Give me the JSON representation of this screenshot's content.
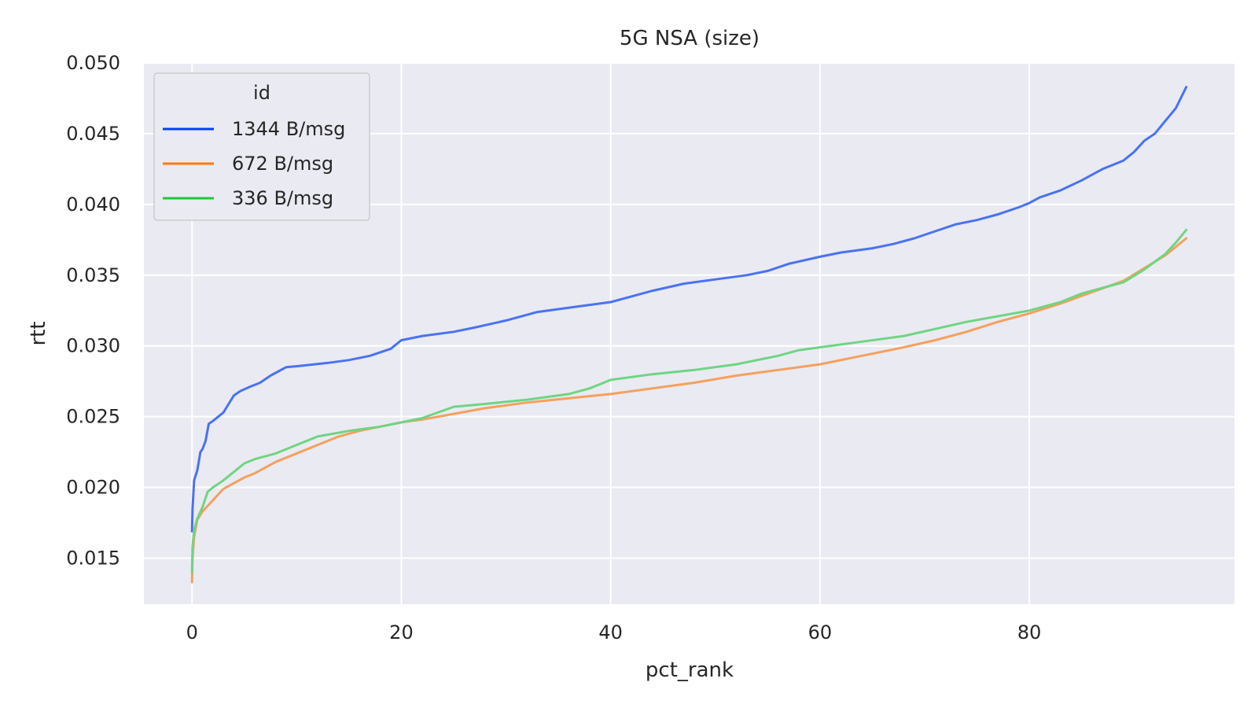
{
  "chart_data": {
    "type": "line",
    "title": "5G NSA (size)",
    "xlabel": "pct_rank",
    "ylabel": "rtt",
    "xlim": [
      -4.6,
      99.6
    ],
    "ylim": [
      0.01175,
      0.05
    ],
    "x_ticks": [
      0,
      20,
      40,
      60,
      80
    ],
    "y_ticks": [
      0.015,
      0.02,
      0.025,
      0.03,
      0.035,
      0.04,
      0.045,
      0.05
    ],
    "y_tick_labels": [
      "0.015",
      "0.020",
      "0.025",
      "0.030",
      "0.035",
      "0.040",
      "0.045",
      "0.050"
    ],
    "grid": true,
    "legend": {
      "title": "id",
      "position": "top-left"
    },
    "colors": {
      "background": "#eaeaf2",
      "grid": "#ffffff"
    },
    "series": [
      {
        "name": "1344 B/msg",
        "color": "#4a72f0",
        "legend_color": "#023eff",
        "x": [
          0,
          0.05,
          0.2,
          0.5,
          0.8,
          1.0,
          1.3,
          1.6,
          2.0,
          3.0,
          3.5,
          4.0,
          4.6,
          5.5,
          6.5,
          7.5,
          9.0,
          10.5,
          13.0,
          15.0,
          17.0,
          19.0,
          20.0,
          22.0,
          25.0,
          27.0,
          30.0,
          33.0,
          37.0,
          40.0,
          42.0,
          44.0,
          47.0,
          50.0,
          53.0,
          55.0,
          57.0,
          60.0,
          62.0,
          65.0,
          67.0,
          69.0,
          71.0,
          73.0,
          75.0,
          77.0,
          79.0,
          80.0,
          81.0,
          83.0,
          85.0,
          87.0,
          88.0,
          89.0,
          90.0,
          91.0,
          92.0,
          93.0,
          94.0,
          95.0
        ],
        "y": [
          0.0169,
          0.0185,
          0.0205,
          0.0212,
          0.0225,
          0.0227,
          0.0233,
          0.0245,
          0.0247,
          0.0253,
          0.0259,
          0.0265,
          0.0268,
          0.0271,
          0.0274,
          0.0279,
          0.0285,
          0.0286,
          0.0288,
          0.029,
          0.0293,
          0.0298,
          0.0304,
          0.0307,
          0.031,
          0.0313,
          0.0318,
          0.0324,
          0.0328,
          0.0331,
          0.0335,
          0.0339,
          0.0344,
          0.0347,
          0.035,
          0.0353,
          0.0358,
          0.0363,
          0.0366,
          0.0369,
          0.0372,
          0.0376,
          0.0381,
          0.0386,
          0.0389,
          0.0393,
          0.0398,
          0.0401,
          0.0405,
          0.041,
          0.0417,
          0.0425,
          0.0428,
          0.0431,
          0.0437,
          0.0445,
          0.045,
          0.0459,
          0.0468,
          0.0483
        ]
      },
      {
        "name": "672 B/msg",
        "color": "#f5a05c",
        "legend_color": "#ff7c00",
        "x": [
          0,
          0.05,
          0.2,
          0.5,
          1.0,
          1.5,
          2.0,
          3.0,
          4.0,
          5.0,
          6.0,
          8.0,
          10.0,
          12.0,
          14.0,
          16.0,
          18.0,
          20.0,
          22.0,
          25.0,
          28.0,
          32.0,
          36.0,
          40.0,
          44.0,
          48.0,
          52.0,
          56.0,
          60.0,
          64.0,
          68.0,
          71.0,
          74.0,
          77.0,
          80.0,
          83.0,
          86.0,
          89.0,
          91.0,
          93.0,
          95.0
        ],
        "y": [
          0.0133,
          0.015,
          0.0165,
          0.0177,
          0.0183,
          0.0187,
          0.0191,
          0.0199,
          0.0203,
          0.0207,
          0.021,
          0.0218,
          0.0224,
          0.023,
          0.0236,
          0.024,
          0.0243,
          0.0246,
          0.0248,
          0.0252,
          0.0256,
          0.026,
          0.0263,
          0.0266,
          0.027,
          0.0274,
          0.0279,
          0.0283,
          0.0287,
          0.0293,
          0.0299,
          0.0304,
          0.031,
          0.0317,
          0.0323,
          0.033,
          0.0338,
          0.0346,
          0.0355,
          0.0364,
          0.0376
        ]
      },
      {
        "name": "336 B/msg",
        "color": "#6fd582",
        "legend_color": "#1ac938",
        "x": [
          0,
          0.05,
          0.2,
          0.5,
          1.0,
          1.5,
          2.0,
          3.0,
          4.0,
          5.0,
          6.0,
          8.0,
          10.0,
          12.0,
          15.0,
          18.0,
          20.0,
          22.0,
          25.0,
          28.0,
          32.0,
          36.0,
          38.0,
          40.0,
          44.0,
          48.0,
          52.0,
          56.0,
          58.0,
          60.0,
          64.0,
          68.0,
          71.0,
          74.0,
          77.0,
          80.0,
          83.0,
          85.0,
          87.0,
          89.0,
          91.0,
          93.0,
          94.0,
          95.0
        ],
        "y": [
          0.014,
          0.0158,
          0.017,
          0.0178,
          0.0186,
          0.0197,
          0.02,
          0.0205,
          0.0211,
          0.0217,
          0.022,
          0.0224,
          0.023,
          0.0236,
          0.024,
          0.0243,
          0.0246,
          0.0249,
          0.0257,
          0.0259,
          0.0262,
          0.0266,
          0.027,
          0.0276,
          0.028,
          0.0283,
          0.0287,
          0.0293,
          0.0297,
          0.0299,
          0.0303,
          0.0307,
          0.0312,
          0.0317,
          0.0321,
          0.0325,
          0.0331,
          0.0337,
          0.0341,
          0.0345,
          0.0354,
          0.0365,
          0.0373,
          0.0382
        ]
      }
    ]
  }
}
